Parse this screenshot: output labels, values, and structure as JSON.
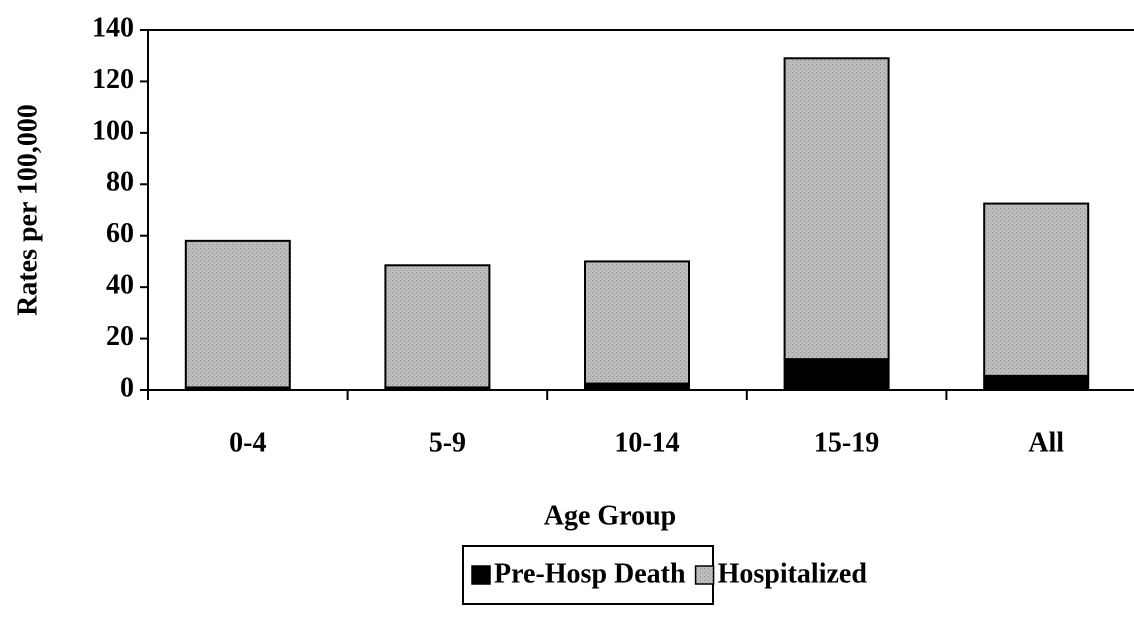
{
  "chart_data": {
    "type": "stacked_bar",
    "x_label": "Age Group",
    "y_label": "Rates per 100,000",
    "categories": [
      "0-4",
      "5-9",
      "10-14",
      "15-19",
      "All"
    ],
    "series": [
      {
        "name": "Pre-Hosp Death",
        "color": "#000000",
        "values": [
          1,
          1,
          2.5,
          12,
          5.5
        ]
      },
      {
        "name": "Hospitalized",
        "color": "#b3b3b3",
        "values": [
          57,
          47.5,
          47.5,
          117,
          67
        ]
      }
    ],
    "ylim": [
      0,
      140
    ],
    "yticks": [
      0,
      20,
      40,
      60,
      80,
      100,
      120,
      140
    ]
  }
}
